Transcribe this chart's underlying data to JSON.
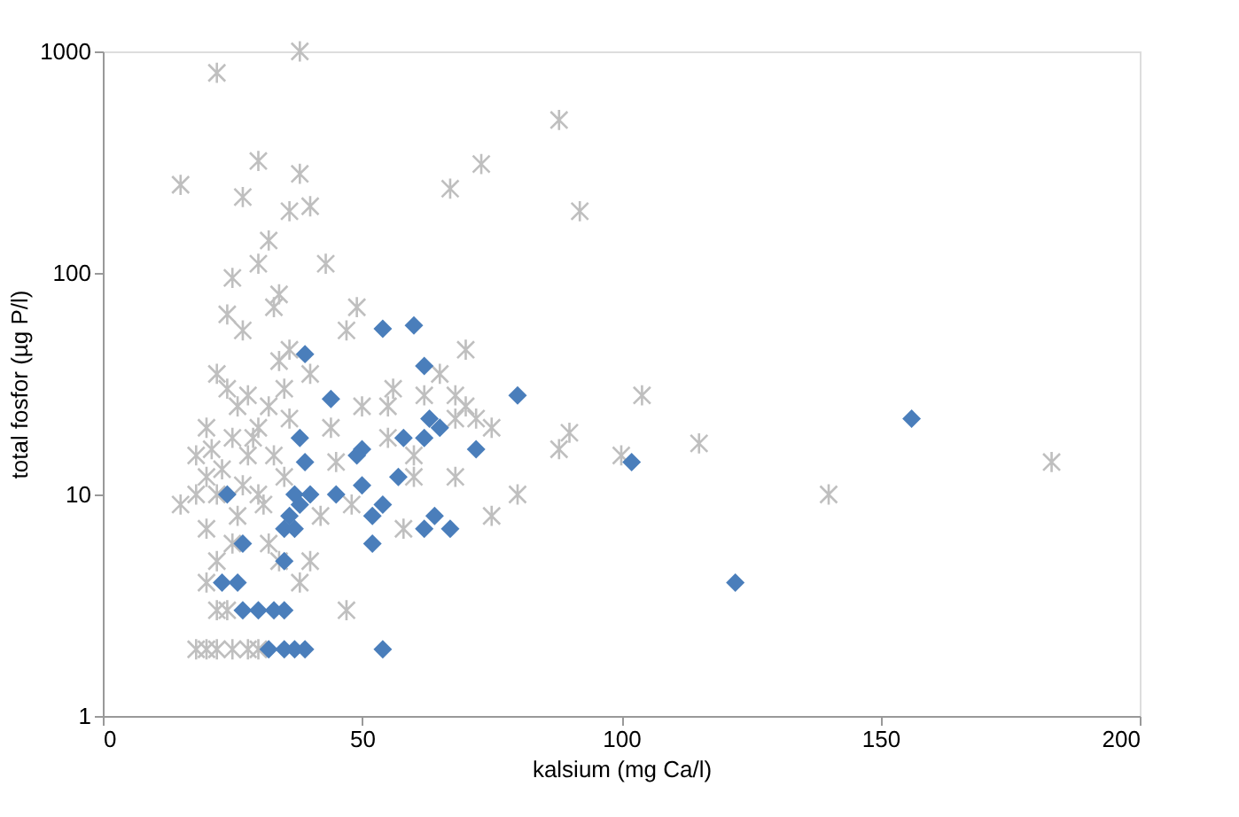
{
  "chart_data": {
    "type": "scatter",
    "xlabel": "kalsium (mg Ca/l)",
    "ylabel": "total fosfor (µg P/l)",
    "xlim": [
      0,
      200
    ],
    "xticks": [
      0,
      50,
      100,
      150,
      200
    ],
    "ylim": [
      1,
      1000
    ],
    "yticks": [
      1,
      10,
      100,
      1000
    ],
    "log": "y",
    "grid": false,
    "series": [
      {
        "color": "#bfbfbf",
        "marker": "cross",
        "x": [
          22,
          38,
          15,
          27,
          30,
          38,
          40,
          36,
          25,
          30,
          32,
          34,
          33,
          43,
          67,
          73,
          88,
          92,
          24,
          27,
          22,
          28,
          34,
          36,
          47,
          49,
          70,
          60,
          62,
          20,
          18,
          15,
          20,
          25,
          30,
          32,
          35,
          28,
          22,
          26,
          30,
          20,
          22,
          25,
          20,
          22,
          20,
          22,
          25,
          28,
          30,
          18,
          70,
          72,
          75,
          88,
          90,
          104,
          115,
          140,
          183,
          47,
          58,
          68,
          75,
          55,
          60,
          45,
          40,
          44,
          50,
          24,
          35,
          32,
          38,
          42,
          26,
          29,
          18,
          21,
          33,
          36,
          23,
          27,
          31,
          34,
          24,
          40,
          48,
          56,
          65,
          68,
          80,
          100,
          68,
          55
        ],
        "values": [
          800,
          1000,
          250,
          220,
          320,
          280,
          200,
          190,
          95,
          110,
          140,
          80,
          70,
          110,
          240,
          310,
          490,
          190,
          65,
          55,
          35,
          28,
          40,
          45,
          55,
          70,
          45,
          15,
          28,
          20,
          15,
          9,
          12,
          18,
          20,
          25,
          30,
          15,
          10,
          8,
          10,
          7,
          5,
          6,
          4,
          3,
          2,
          2,
          2,
          2,
          2,
          2,
          25,
          22,
          20,
          16,
          19,
          28,
          17,
          10,
          14,
          3,
          7,
          12,
          8,
          25,
          12,
          14,
          35,
          20,
          25,
          30,
          12,
          6,
          4,
          8,
          25,
          18,
          10,
          16,
          15,
          22,
          13,
          11,
          9,
          5,
          3,
          5,
          9,
          30,
          35,
          28,
          10,
          15,
          22,
          18
        ]
      },
      {
        "color": "#4a7ebb",
        "marker": "diamond",
        "x": [
          156,
          122,
          102,
          80,
          72,
          62,
          60,
          54,
          63,
          65,
          62,
          58,
          57,
          62,
          64,
          67,
          52,
          52,
          54,
          50,
          49,
          50,
          45,
          44,
          39,
          38,
          39,
          37,
          38,
          40,
          36,
          35,
          37,
          35,
          27,
          24,
          23,
          26,
          27,
          30,
          33,
          35,
          32,
          35,
          37,
          39,
          54
        ],
        "values": [
          22,
          4,
          14,
          28,
          16,
          38,
          58,
          56,
          22,
          20,
          18,
          18,
          12,
          7,
          8,
          7,
          8,
          6,
          9,
          16,
          15,
          11,
          10,
          27,
          43,
          18,
          14,
          10,
          9,
          10,
          8,
          7,
          7,
          5,
          6,
          10,
          4,
          4,
          3,
          3,
          3,
          3,
          2,
          2,
          2,
          2,
          2
        ]
      }
    ]
  }
}
